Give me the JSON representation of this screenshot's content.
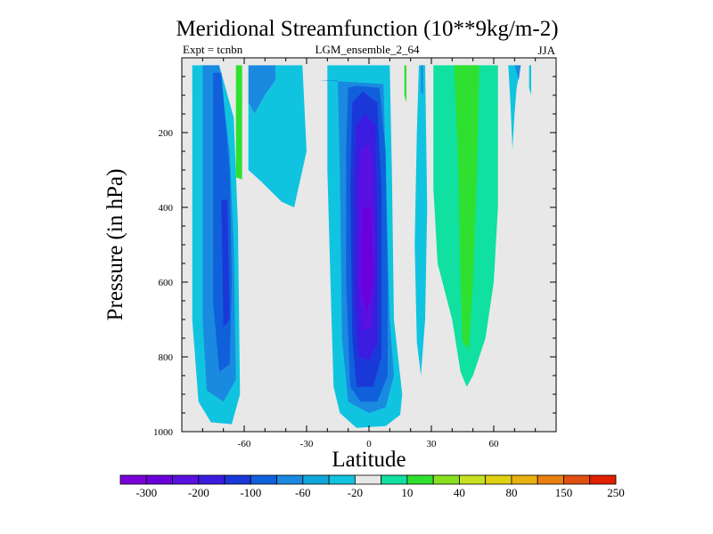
{
  "chart_data": {
    "type": "contour",
    "title": "Meridional Streamfunction (10**9kg/m-2)",
    "subtitle_left": "Expt = tcnbn",
    "subtitle_center": "LGM_ensemble_2_64",
    "subtitle_right": "JJA",
    "xlabel": "Latitude",
    "ylabel": "Pressure (in hPa)",
    "xlim": [
      -90,
      90
    ],
    "ylim": [
      1000,
      0
    ],
    "x_ticks": [
      {
        "value": -60,
        "label": "-60"
      },
      {
        "value": -30,
        "label": "-30"
      },
      {
        "value": 0,
        "label": "0"
      },
      {
        "value": 30,
        "label": "30"
      },
      {
        "value": 60,
        "label": "60"
      }
    ],
    "y_ticks": [
      {
        "value": 200,
        "label": "200"
      },
      {
        "value": 400,
        "label": "400"
      },
      {
        "value": 600,
        "label": "600"
      },
      {
        "value": 800,
        "label": "800"
      },
      {
        "value": 1000,
        "label": "1000"
      }
    ],
    "background_color": "#e8e8e8",
    "colorbar": {
      "colors": [
        "#7a00d8",
        "#6a00dc",
        "#5a10e0",
        "#3c1ce0",
        "#1a38d8",
        "#1060dc",
        "#1a8ae0",
        "#10a8dc",
        "#10c4e0",
        "#e8e8e8",
        "#10e0a0",
        "#30e030",
        "#88e020",
        "#c8e020",
        "#e0d010",
        "#e8b010",
        "#e88010",
        "#e05010",
        "#e02000"
      ],
      "labels": [
        {
          "after_box": 1,
          "text": "-300"
        },
        {
          "after_box": 3,
          "text": "-200"
        },
        {
          "after_box": 5,
          "text": "-100"
        },
        {
          "after_box": 7,
          "text": "-60"
        },
        {
          "after_box": 9,
          "text": "-20"
        },
        {
          "after_box": 11,
          "text": "10"
        },
        {
          "after_box": 13,
          "text": "40"
        },
        {
          "after_box": 15,
          "text": "80"
        },
        {
          "after_box": 17,
          "text": "150"
        },
        {
          "after_box": 19,
          "text": "250"
        }
      ]
    },
    "regions": [
      {
        "name": "sh-cell-cyan",
        "color": "#10c4e0",
        "points": [
          [
            -85,
            20
          ],
          [
            -72,
            20
          ],
          [
            -65,
            160
          ],
          [
            -63,
            450
          ],
          [
            -62,
            900
          ],
          [
            -66,
            980
          ],
          [
            -76,
            975
          ],
          [
            -82,
            920
          ],
          [
            -85,
            700
          ]
        ]
      },
      {
        "name": "sh-cell-light",
        "color": "#1a8ae0",
        "points": [
          [
            -80,
            20
          ],
          [
            -72,
            20
          ],
          [
            -67,
            250
          ],
          [
            -65,
            500
          ],
          [
            -64,
            860
          ],
          [
            -70,
            920
          ],
          [
            -78,
            890
          ],
          [
            -80,
            700
          ]
        ]
      },
      {
        "name": "sh-cell-medium",
        "color": "#1060dc",
        "points": [
          [
            -75,
            40
          ],
          [
            -71,
            40
          ],
          [
            -67,
            300
          ],
          [
            -66,
            600
          ],
          [
            -67,
            820
          ],
          [
            -72,
            840
          ],
          [
            -75,
            650
          ]
        ]
      },
      {
        "name": "sh-cell-core",
        "color": "#1a38d8",
        "points": [
          [
            -71,
            380
          ],
          [
            -68,
            380
          ],
          [
            -67,
            700
          ],
          [
            -70,
            720
          ]
        ]
      },
      {
        "name": "green-strip-south",
        "color": "#30e030",
        "points": [
          [
            -64,
            20
          ],
          [
            -61,
            20
          ],
          [
            -61,
            325
          ],
          [
            -64,
            320
          ]
        ]
      },
      {
        "name": "mid-sh-light-blue",
        "color": "#1a8ae0",
        "points": [
          [
            -58,
            20
          ],
          [
            -45,
            20
          ],
          [
            -45,
            60
          ],
          [
            -50,
            100
          ],
          [
            -55,
            150
          ],
          [
            -58,
            120
          ]
        ]
      },
      {
        "name": "mid-sh-cyan",
        "color": "#10c4e0",
        "points": [
          [
            -58,
            120
          ],
          [
            -55,
            150
          ],
          [
            -50,
            100
          ],
          [
            -45,
            60
          ],
          [
            -45,
            20
          ],
          [
            -32,
            20
          ],
          [
            -30,
            250
          ],
          [
            -36,
            400
          ],
          [
            -42,
            385
          ],
          [
            -52,
            330
          ],
          [
            -58,
            300
          ]
        ]
      },
      {
        "name": "hadley-cyan",
        "color": "#10c4e0",
        "points": [
          [
            -29,
            20
          ],
          [
            -20,
            20
          ],
          [
            -20,
            300
          ],
          [
            -18,
            700
          ],
          [
            -17,
            880
          ],
          [
            -14,
            950
          ],
          [
            -6,
            990
          ],
          [
            8,
            985
          ],
          [
            15,
            955
          ],
          [
            16,
            900
          ],
          [
            12,
            700
          ],
          [
            11,
            300
          ],
          [
            10,
            20
          ]
        ]
      },
      {
        "name": "hadley-light-blue",
        "color": "#1a8ae0",
        "points": [
          [
            -24,
            60
          ],
          [
            -15,
            60
          ],
          [
            -14,
            300
          ],
          [
            -13,
            750
          ],
          [
            -10,
            920
          ],
          [
            0,
            950
          ],
          [
            8,
            935
          ],
          [
            12,
            850
          ],
          [
            10,
            700
          ],
          [
            8,
            300
          ],
          [
            7,
            70
          ]
        ]
      },
      {
        "name": "hadley-blue-1",
        "color": "#1060dc",
        "points": [
          [
            -10,
            80
          ],
          [
            -6,
            75
          ],
          [
            5,
            80
          ],
          [
            8,
            250
          ],
          [
            9,
            600
          ],
          [
            9,
            850
          ],
          [
            4,
            920
          ],
          [
            -4,
            920
          ],
          [
            -9,
            880
          ],
          [
            -11,
            600
          ],
          [
            -11,
            250
          ]
        ]
      },
      {
        "name": "hadley-blue-2",
        "color": "#1a38d8",
        "points": [
          [
            -8,
            120
          ],
          [
            -3,
            90
          ],
          [
            4,
            120
          ],
          [
            6,
            350
          ],
          [
            6,
            800
          ],
          [
            2,
            880
          ],
          [
            -6,
            880
          ],
          [
            -8,
            750
          ],
          [
            -9,
            350
          ]
        ]
      },
      {
        "name": "hadley-blue-3",
        "color": "#3c1ce0",
        "points": [
          [
            -6,
            180
          ],
          [
            -2,
            150
          ],
          [
            3,
            180
          ],
          [
            4,
            450
          ],
          [
            4,
            760
          ],
          [
            0,
            810
          ],
          [
            -5,
            800
          ],
          [
            -7,
            650
          ],
          [
            -7,
            300
          ]
        ]
      },
      {
        "name": "hadley-blue-4",
        "color": "#5a10e0",
        "points": [
          [
            -4,
            250
          ],
          [
            0,
            230
          ],
          [
            2,
            300
          ],
          [
            3,
            550
          ],
          [
            1,
            720
          ],
          [
            -3,
            730
          ],
          [
            -5,
            600
          ],
          [
            -5,
            350
          ]
        ]
      },
      {
        "name": "hadley-core",
        "color": "#6a00dc",
        "points": [
          [
            -3,
            400
          ],
          [
            1,
            400
          ],
          [
            2,
            600
          ],
          [
            -1,
            680
          ],
          [
            -4,
            620
          ]
        ]
      },
      {
        "name": "green-strip-north",
        "color": "#30e030",
        "points": [
          [
            17,
            20
          ],
          [
            18,
            20
          ],
          [
            18,
            120
          ],
          [
            17,
            100
          ]
        ]
      },
      {
        "name": "ne-cyan-strip",
        "color": "#10c4e0",
        "points": [
          [
            24,
            20
          ],
          [
            27,
            20
          ],
          [
            28,
            400
          ],
          [
            27,
            700
          ],
          [
            25,
            850
          ],
          [
            23,
            760
          ],
          [
            22,
            500
          ],
          [
            23,
            200
          ]
        ]
      },
      {
        "name": "ne-light-blue-top",
        "color": "#1a8ae0",
        "points": [
          [
            25,
            20
          ],
          [
            26,
            20
          ],
          [
            26,
            100
          ],
          [
            25,
            90
          ]
        ]
      },
      {
        "name": "green-teal-cell",
        "color": "#10e0a0",
        "points": [
          [
            31,
            20
          ],
          [
            50,
            20
          ],
          [
            62,
            20
          ],
          [
            62,
            400
          ],
          [
            60,
            600
          ],
          [
            56,
            750
          ],
          [
            50,
            850
          ],
          [
            47,
            880
          ],
          [
            44,
            840
          ],
          [
            40,
            700
          ],
          [
            33,
            550
          ],
          [
            31,
            350
          ]
        ]
      },
      {
        "name": "green-core",
        "color": "#30e030",
        "points": [
          [
            41,
            20
          ],
          [
            53,
            20
          ],
          [
            52,
            300
          ],
          [
            50,
            600
          ],
          [
            48,
            780
          ],
          [
            45,
            760
          ],
          [
            44,
            600
          ],
          [
            43,
            300
          ]
        ]
      },
      {
        "name": "nh-cyan-right",
        "color": "#10c4e0",
        "points": [
          [
            67,
            20
          ],
          [
            73,
            20
          ],
          [
            71,
            80
          ],
          [
            70,
            150
          ],
          [
            69,
            245
          ],
          [
            68,
            120
          ]
        ]
      },
      {
        "name": "nh-light-blue-right",
        "color": "#1a8ae0",
        "points": [
          [
            70,
            20
          ],
          [
            73,
            20
          ],
          [
            72,
            60
          ],
          [
            71,
            40
          ]
        ]
      },
      {
        "name": "nh-cyan-far-right",
        "color": "#10c4e0",
        "points": [
          [
            77,
            20
          ],
          [
            78,
            20
          ],
          [
            78,
            100
          ],
          [
            77,
            80
          ]
        ]
      }
    ]
  }
}
